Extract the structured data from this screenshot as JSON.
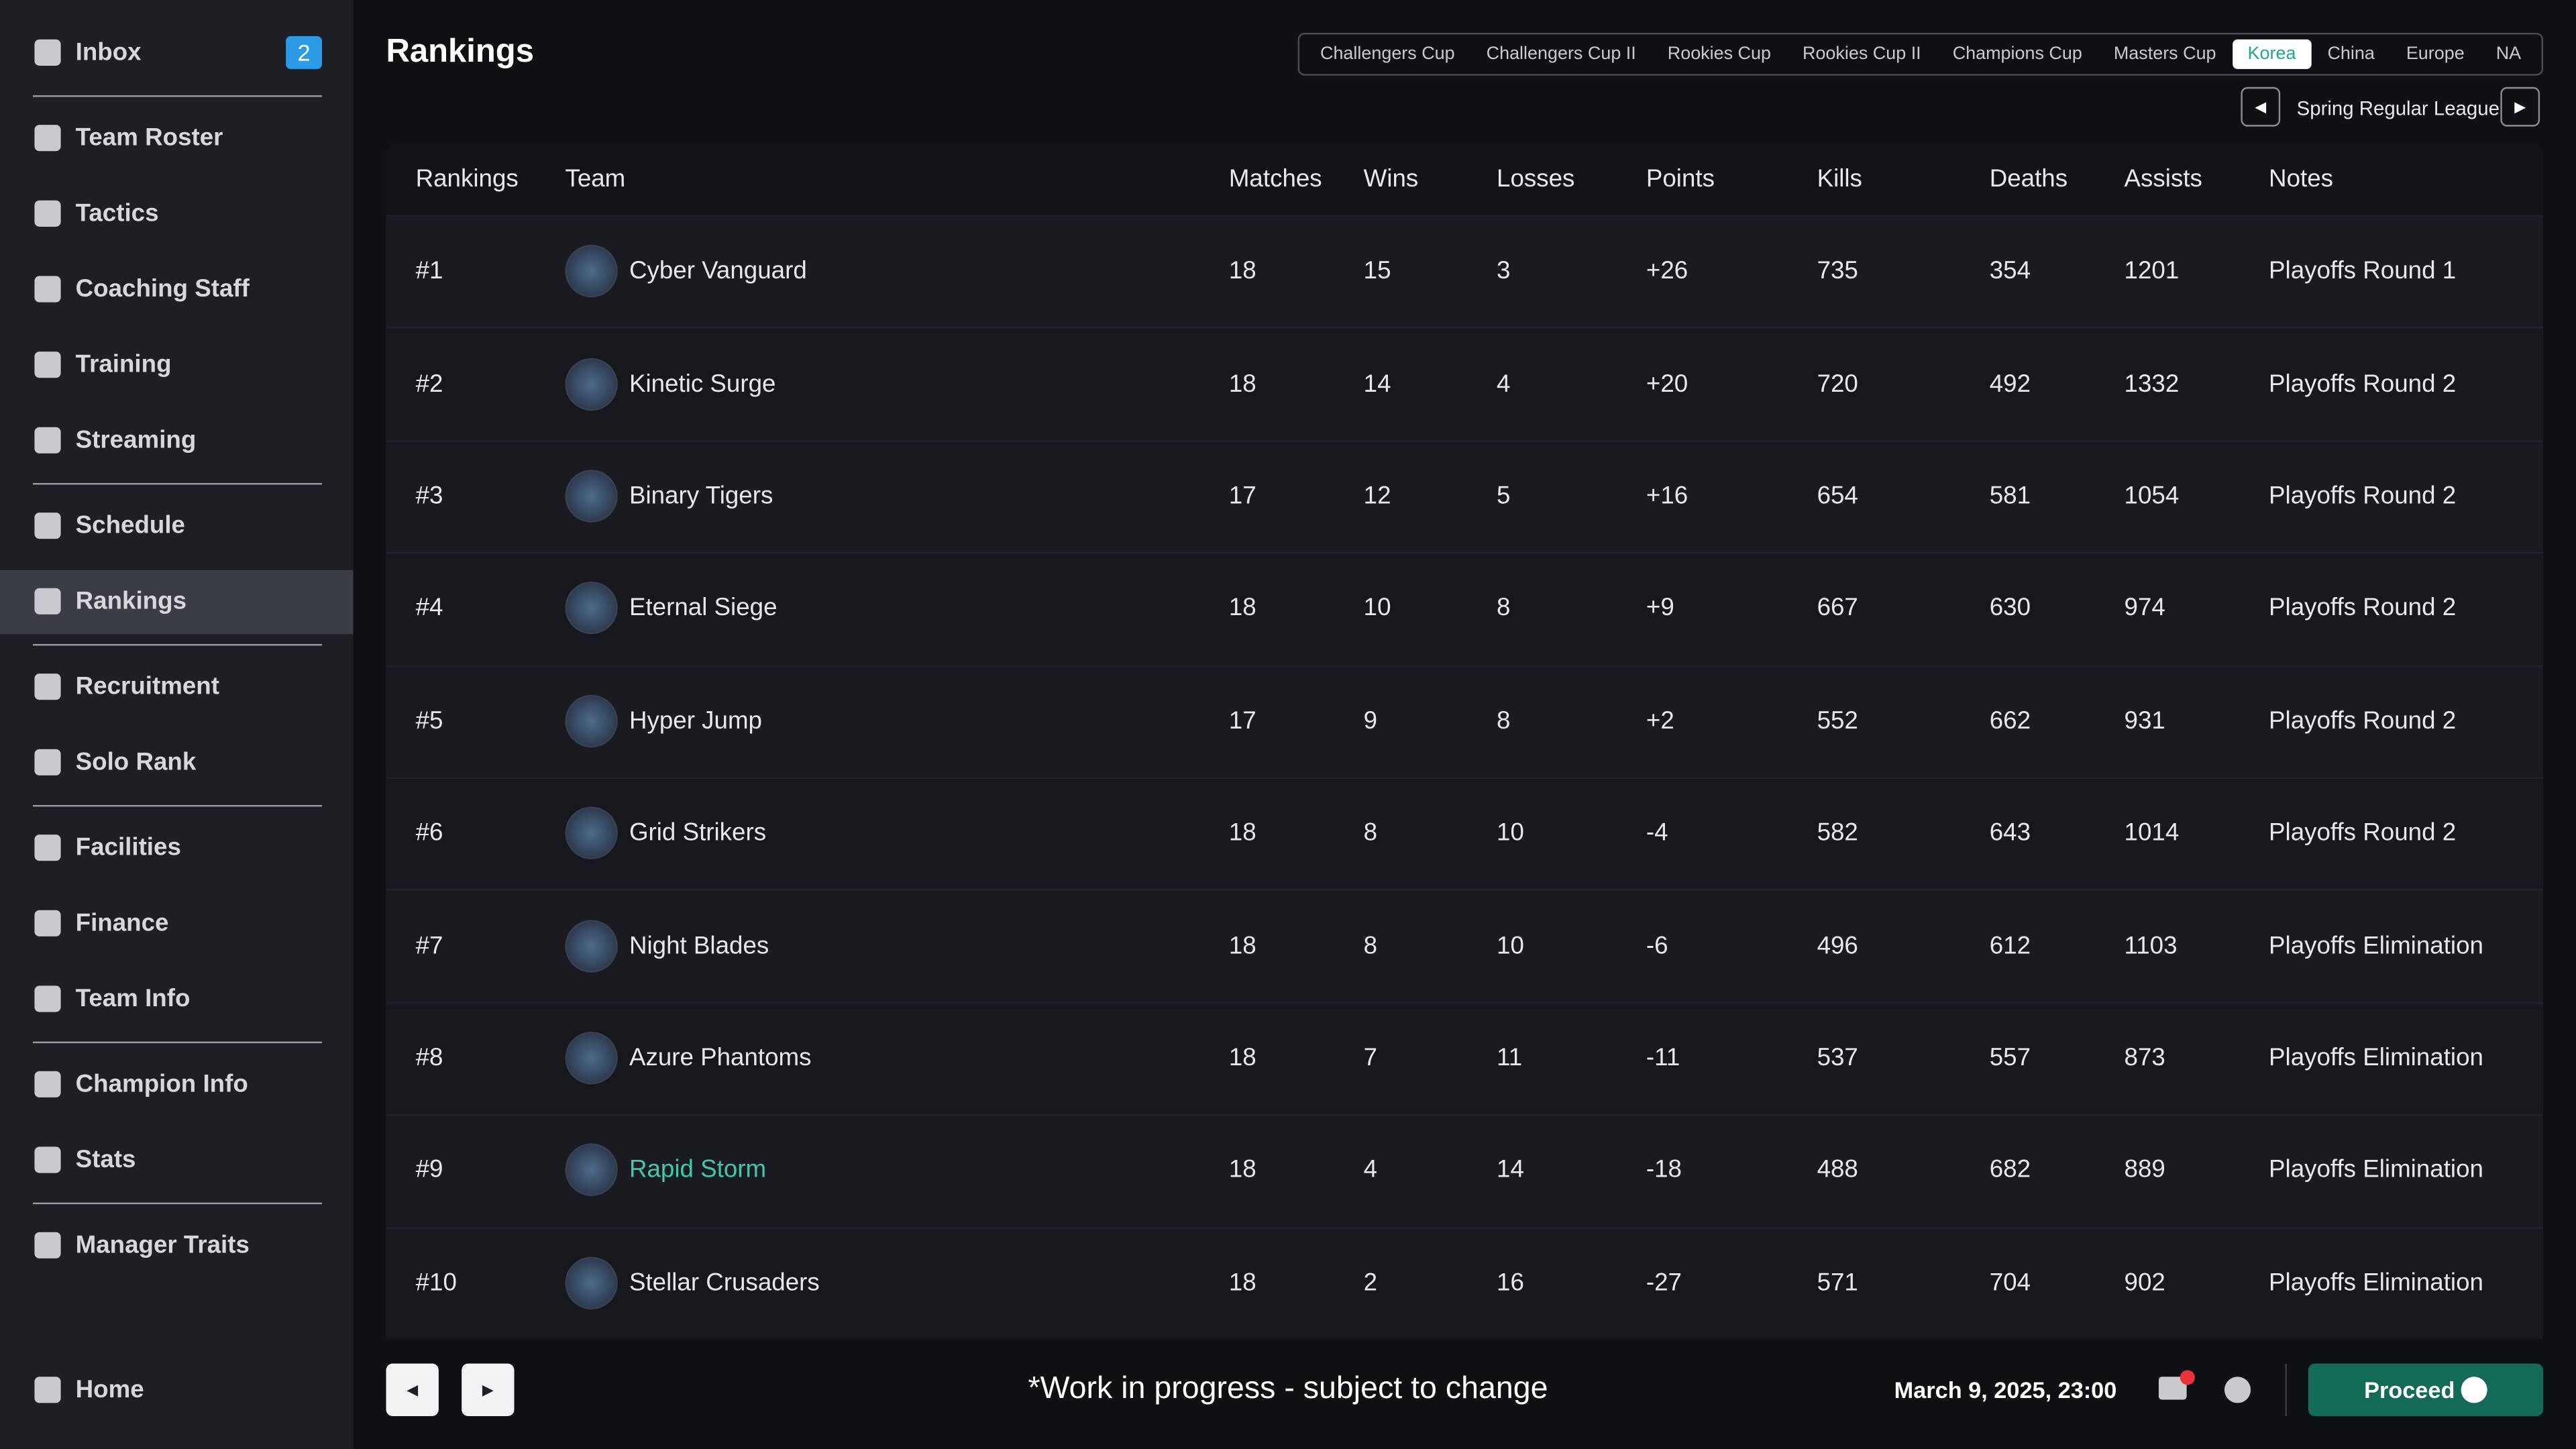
{
  "sidebar": {
    "items": [
      {
        "label": "Inbox",
        "badge": "2",
        "group": 0
      },
      {
        "label": "Team Roster",
        "group": 1
      },
      {
        "label": "Tactics",
        "group": 1
      },
      {
        "label": "Coaching Staff",
        "group": 1
      },
      {
        "label": "Training",
        "group": 1
      },
      {
        "label": "Streaming",
        "group": 1
      },
      {
        "label": "Schedule",
        "group": 2
      },
      {
        "label": "Rankings",
        "group": 2,
        "active": true
      },
      {
        "label": "Recruitment",
        "group": 3
      },
      {
        "label": "Solo Rank",
        "group": 3
      },
      {
        "label": "Facilities",
        "group": 4
      },
      {
        "label": "Finance",
        "group": 4
      },
      {
        "label": "Team Info",
        "group": 4
      },
      {
        "label": "Champion Info",
        "group": 5
      },
      {
        "label": "Stats",
        "group": 5
      },
      {
        "label": "Manager Traits",
        "group": 6
      }
    ],
    "home": "Home"
  },
  "header": {
    "title": "Rankings",
    "tabs": [
      {
        "label": "Challengers Cup"
      },
      {
        "label": "Challengers Cup II"
      },
      {
        "label": "Rookies Cup"
      },
      {
        "label": "Rookies Cup II"
      },
      {
        "label": "Champions Cup"
      },
      {
        "label": "Masters Cup"
      },
      {
        "label": "Korea",
        "active": true
      },
      {
        "label": "China"
      },
      {
        "label": "Europe"
      },
      {
        "label": "NA"
      }
    ],
    "league": "Spring Regular League"
  },
  "table": {
    "columns": [
      "Rankings",
      "Team",
      "Matches",
      "Wins",
      "Losses",
      "Points",
      "Kills",
      "Deaths",
      "Assists",
      "Notes"
    ],
    "rows": [
      [
        "#1",
        "Cyber Vanguard",
        "18",
        "15",
        "3",
        "+26",
        "735",
        "354",
        "1201",
        "Playoffs Round 1"
      ],
      [
        "#2",
        "Kinetic Surge",
        "18",
        "14",
        "4",
        "+20",
        "720",
        "492",
        "1332",
        "Playoffs Round 2"
      ],
      [
        "#3",
        "Binary Tigers",
        "17",
        "12",
        "5",
        "+16",
        "654",
        "581",
        "1054",
        "Playoffs Round 2"
      ],
      [
        "#4",
        "Eternal Siege",
        "18",
        "10",
        "8",
        "+9",
        "667",
        "630",
        "974",
        "Playoffs Round 2"
      ],
      [
        "#5",
        "Hyper Jump",
        "17",
        "9",
        "8",
        "+2",
        "552",
        "662",
        "931",
        "Playoffs Round 2"
      ],
      [
        "#6",
        "Grid Strikers",
        "18",
        "8",
        "10",
        "-4",
        "582",
        "643",
        "1014",
        "Playoffs Round 2"
      ],
      [
        "#7",
        "Night Blades",
        "18",
        "8",
        "10",
        "-6",
        "496",
        "612",
        "1103",
        "Playoffs Elimination"
      ],
      [
        "#8",
        "Azure Phantoms",
        "18",
        "7",
        "11",
        "-11",
        "537",
        "557",
        "873",
        "Playoffs Elimination"
      ],
      [
        "#9",
        "Rapid Storm",
        "18",
        "4",
        "14",
        "-18",
        "488",
        "682",
        "889",
        "Playoffs Elimination"
      ],
      [
        "#10",
        "Stellar Crusaders",
        "18",
        "2",
        "16",
        "-27",
        "571",
        "704",
        "902",
        "Playoffs Elimination"
      ]
    ],
    "highlight_row": 8
  },
  "footer": {
    "notice": "*Work in progress - subject to change",
    "datetime": "March 9, 2025, 23:00",
    "proceed": "Proceed"
  }
}
